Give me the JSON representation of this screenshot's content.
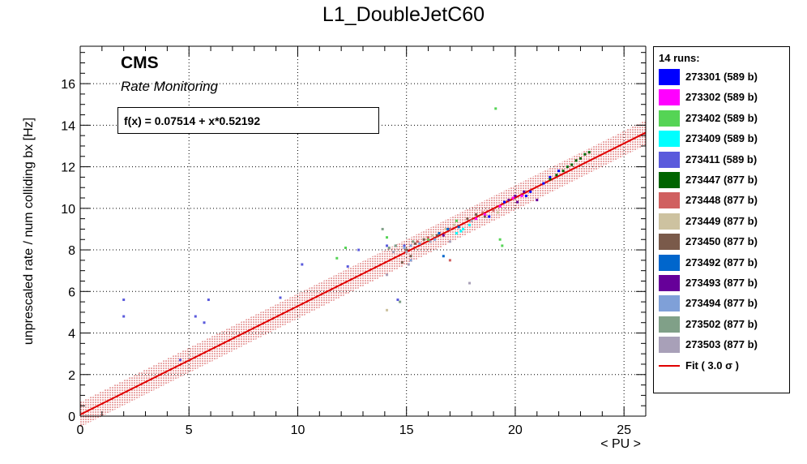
{
  "chart_data": {
    "type": "scatter",
    "title": "L1_DoubleJetC60",
    "xlabel": "< PU >",
    "ylabel": "unprescaled rate / num colliding bx [Hz]",
    "xlim": [
      0,
      26
    ],
    "ylim": [
      0,
      17.8
    ],
    "xticks": [
      0,
      5,
      10,
      15,
      20,
      25
    ],
    "yticks": [
      0,
      2,
      4,
      6,
      8,
      10,
      12,
      14,
      16
    ],
    "grid": true,
    "legend_placement": "right-outside",
    "annotations": {
      "experiment": "CMS",
      "subtitle": "Rate Monitoring",
      "fit_formula": "f(x) = 0.07514 + x*0.52192"
    },
    "legend_header": "14 runs:",
    "fit": {
      "name": "Fit ( 3.0 σ )",
      "intercept": 0.07514,
      "slope": 0.52192,
      "band_sigma": 3.0,
      "band_half_width": 0.6,
      "color": "#e00000"
    },
    "series": [
      {
        "name": "273301 (589 b)",
        "color": "#0000ff",
        "points": [
          [
            20.5,
            10.6
          ],
          [
            20.7,
            10.8
          ],
          [
            21.3,
            11.2
          ],
          [
            21.6,
            11.5
          ],
          [
            22.0,
            11.8
          ],
          [
            19.5,
            10.3
          ],
          [
            18.8,
            9.6
          ]
        ]
      },
      {
        "name": "273302 (589 b)",
        "color": "#ff00ff",
        "points": [
          [
            18.2,
            9.5
          ],
          [
            18.6,
            9.7
          ],
          [
            19.3,
            10.1
          ],
          [
            19.9,
            10.5
          ],
          [
            20.3,
            10.6
          ]
        ]
      },
      {
        "name": "273402 (589 b)",
        "color": "#55d455",
        "points": [
          [
            19.1,
            14.8
          ],
          [
            19.3,
            8.5
          ],
          [
            19.4,
            8.2
          ],
          [
            11.8,
            7.6
          ],
          [
            12.2,
            8.1
          ],
          [
            14.1,
            8.6
          ],
          [
            16.0,
            8.5
          ],
          [
            17.3,
            9.4
          ]
        ]
      },
      {
        "name": "273409 (589 b)",
        "color": "#00ffff",
        "points": [
          [
            17.3,
            8.8
          ],
          [
            17.6,
            9.0
          ],
          [
            17.9,
            9.2
          ],
          [
            17.5,
            8.9
          ]
        ]
      },
      {
        "name": "273411 (589 b)",
        "color": "#5a5adc",
        "points": [
          [
            2.0,
            5.6
          ],
          [
            2.0,
            4.8
          ],
          [
            5.3,
            4.8
          ],
          [
            5.7,
            4.5
          ],
          [
            5.9,
            5.6
          ],
          [
            9.2,
            5.7
          ],
          [
            10.2,
            7.3
          ],
          [
            12.3,
            7.2
          ],
          [
            12.8,
            8.0
          ],
          [
            14.1,
            8.2
          ],
          [
            14.6,
            5.6
          ],
          [
            14.9,
            8.2
          ],
          [
            4.6,
            2.7
          ]
        ]
      },
      {
        "name": "273447 (877 b)",
        "color": "#006400",
        "points": [
          [
            21.6,
            11.4
          ],
          [
            21.9,
            11.6
          ],
          [
            22.2,
            11.8
          ],
          [
            22.4,
            12.0
          ],
          [
            22.6,
            12.1
          ],
          [
            22.8,
            12.3
          ],
          [
            23.0,
            12.4
          ],
          [
            23.2,
            12.6
          ],
          [
            23.4,
            12.7
          ]
        ]
      },
      {
        "name": "273448 (877 b)",
        "color": "#d06060",
        "points": [
          [
            15.5,
            8.4
          ],
          [
            16.0,
            8.6
          ],
          [
            16.5,
            8.8
          ],
          [
            17.0,
            9.0
          ],
          [
            18.5,
            9.8
          ],
          [
            19.0,
            9.9
          ],
          [
            17.0,
            7.5
          ]
        ]
      },
      {
        "name": "273449 (877 b)",
        "color": "#cdc2a0",
        "points": [
          [
            15.8,
            8.5
          ],
          [
            16.2,
            8.7
          ],
          [
            16.8,
            9.0
          ],
          [
            17.2,
            9.2
          ],
          [
            18.2,
            9.7
          ],
          [
            19.2,
            9.8
          ],
          [
            14.1,
            5.1
          ]
        ]
      },
      {
        "name": "273450 (877 b)",
        "color": "#7a5a4a",
        "points": [
          [
            15.0,
            8.0
          ],
          [
            15.4,
            8.3
          ],
          [
            15.8,
            8.5
          ],
          [
            16.4,
            8.7
          ],
          [
            17.8,
            9.5
          ],
          [
            18.2,
            9.7
          ],
          [
            18.6,
            9.6
          ],
          [
            14.8,
            7.4
          ],
          [
            15.2,
            7.7
          ]
        ]
      },
      {
        "name": "273492 (877 b)",
        "color": "#0066cc",
        "points": [
          [
            16.5,
            8.8
          ],
          [
            16.9,
            9.0
          ],
          [
            17.4,
            9.1
          ],
          [
            16.7,
            7.7
          ]
        ]
      },
      {
        "name": "273493 (877 b)",
        "color": "#660099",
        "points": [
          [
            19.7,
            10.4
          ],
          [
            20.0,
            10.6
          ],
          [
            20.4,
            10.8
          ],
          [
            21.0,
            10.4
          ],
          [
            20.1,
            10.3
          ],
          [
            16.7,
            8.7
          ]
        ]
      },
      {
        "name": "273494 (877 b)",
        "color": "#7fa0d8",
        "points": [
          [
            14.5,
            8.2
          ],
          [
            14.9,
            8.1
          ],
          [
            15.2,
            8.2
          ],
          [
            15.6,
            8.3
          ],
          [
            16.3,
            8.5
          ],
          [
            15.2,
            7.5
          ]
        ]
      },
      {
        "name": "273502 (877 b)",
        "color": "#80a088",
        "points": [
          [
            14.2,
            8.1
          ],
          [
            14.5,
            8.2
          ],
          [
            14.7,
            5.5
          ],
          [
            13.9,
            9.0
          ],
          [
            15.3,
            8.4
          ]
        ]
      },
      {
        "name": "273503 (877 b)",
        "color": "#a8a0b8",
        "points": [
          [
            14.1,
            6.8
          ],
          [
            14.4,
            7.9
          ],
          [
            15.0,
            7.9
          ],
          [
            16.1,
            8.4
          ],
          [
            17.9,
            6.4
          ],
          [
            15.1,
            7.3
          ],
          [
            17.0,
            8.4
          ],
          [
            18.0,
            9.4
          ]
        ]
      }
    ]
  }
}
